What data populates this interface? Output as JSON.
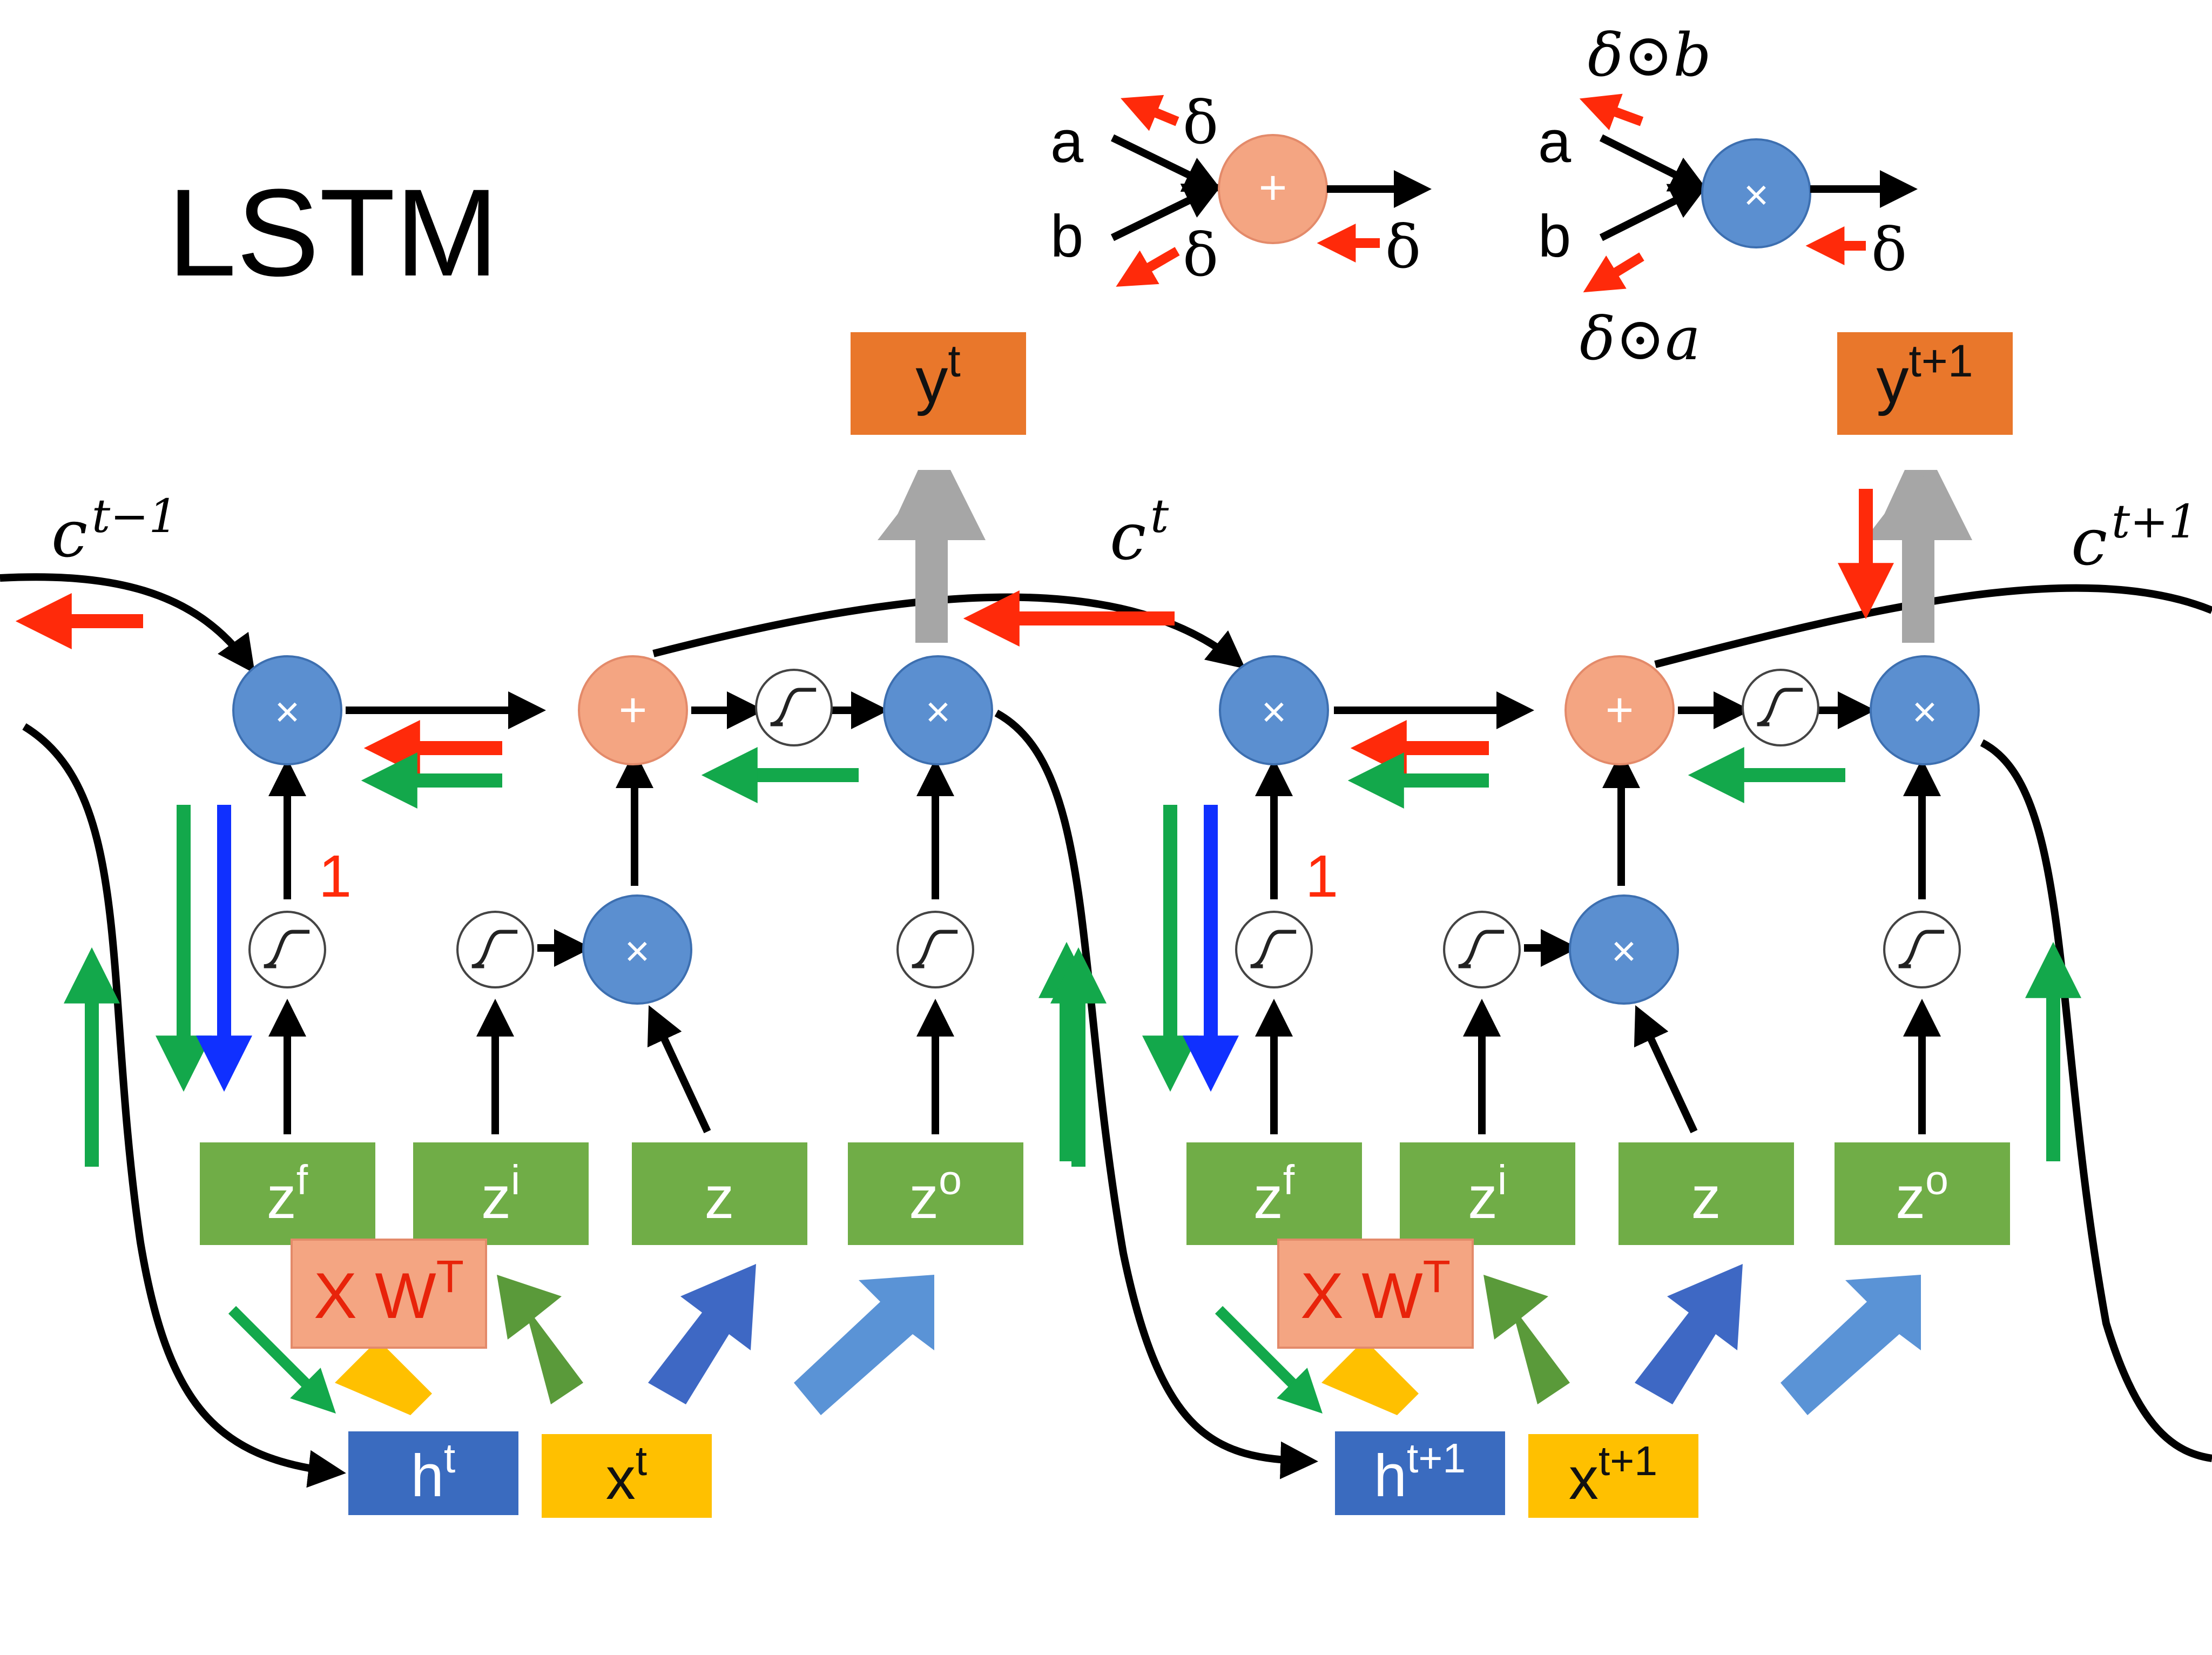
{
  "title": "LSTM",
  "legend_add": {
    "input_a": "a",
    "input_b": "b",
    "grad_a": "δ",
    "grad_b": "δ",
    "grad_out": "δ",
    "symbol": "+"
  },
  "legend_mul": {
    "input_a": "a",
    "input_b": "b",
    "grad_a": "δ⊙b",
    "grad_b": "δ⊙a",
    "grad_out": "δ",
    "symbol": "×"
  },
  "cell_states": {
    "prev": "c",
    "prev_sup": "t−1",
    "curr": "c",
    "curr_sup": "t",
    "next": "c",
    "next_sup": "t+1"
  },
  "steps": [
    {
      "output": "y",
      "output_sup": "t",
      "gates": [
        {
          "label": "z",
          "sup": "f"
        },
        {
          "label": "z",
          "sup": "i"
        },
        {
          "label": "z",
          "sup": ""
        },
        {
          "label": "z",
          "sup": "o"
        }
      ],
      "linear": "X W",
      "linear_sup": "T",
      "hidden": "h",
      "hidden_sup": "t",
      "input": "x",
      "input_sup": "t",
      "forget_grad_label": "1",
      "multiply_symbol": "×",
      "add_symbol": "+"
    },
    {
      "output": "y",
      "output_sup": "t+1",
      "gates": [
        {
          "label": "z",
          "sup": "f"
        },
        {
          "label": "z",
          "sup": "i"
        },
        {
          "label": "z",
          "sup": ""
        },
        {
          "label": "z",
          "sup": "o"
        }
      ],
      "linear": "X W",
      "linear_sup": "T",
      "hidden": "h",
      "hidden_sup": "t+1",
      "input": "x",
      "input_sup": "t+1",
      "forget_grad_label": "1",
      "multiply_symbol": "×",
      "add_symbol": "+"
    }
  ],
  "colors": {
    "gate_green": "#70ad47",
    "mul_blue": "#5b8fd0",
    "add_salmon": "#f4a582",
    "output_orange": "#e9772b",
    "hidden_blue": "#3a6bbf",
    "input_yellow": "#ffc000",
    "grad_red": "#ff2a0a",
    "grad_green": "#13a84b",
    "grad_blue": "#1030ff",
    "up_gray": "#a6a6a6"
  }
}
